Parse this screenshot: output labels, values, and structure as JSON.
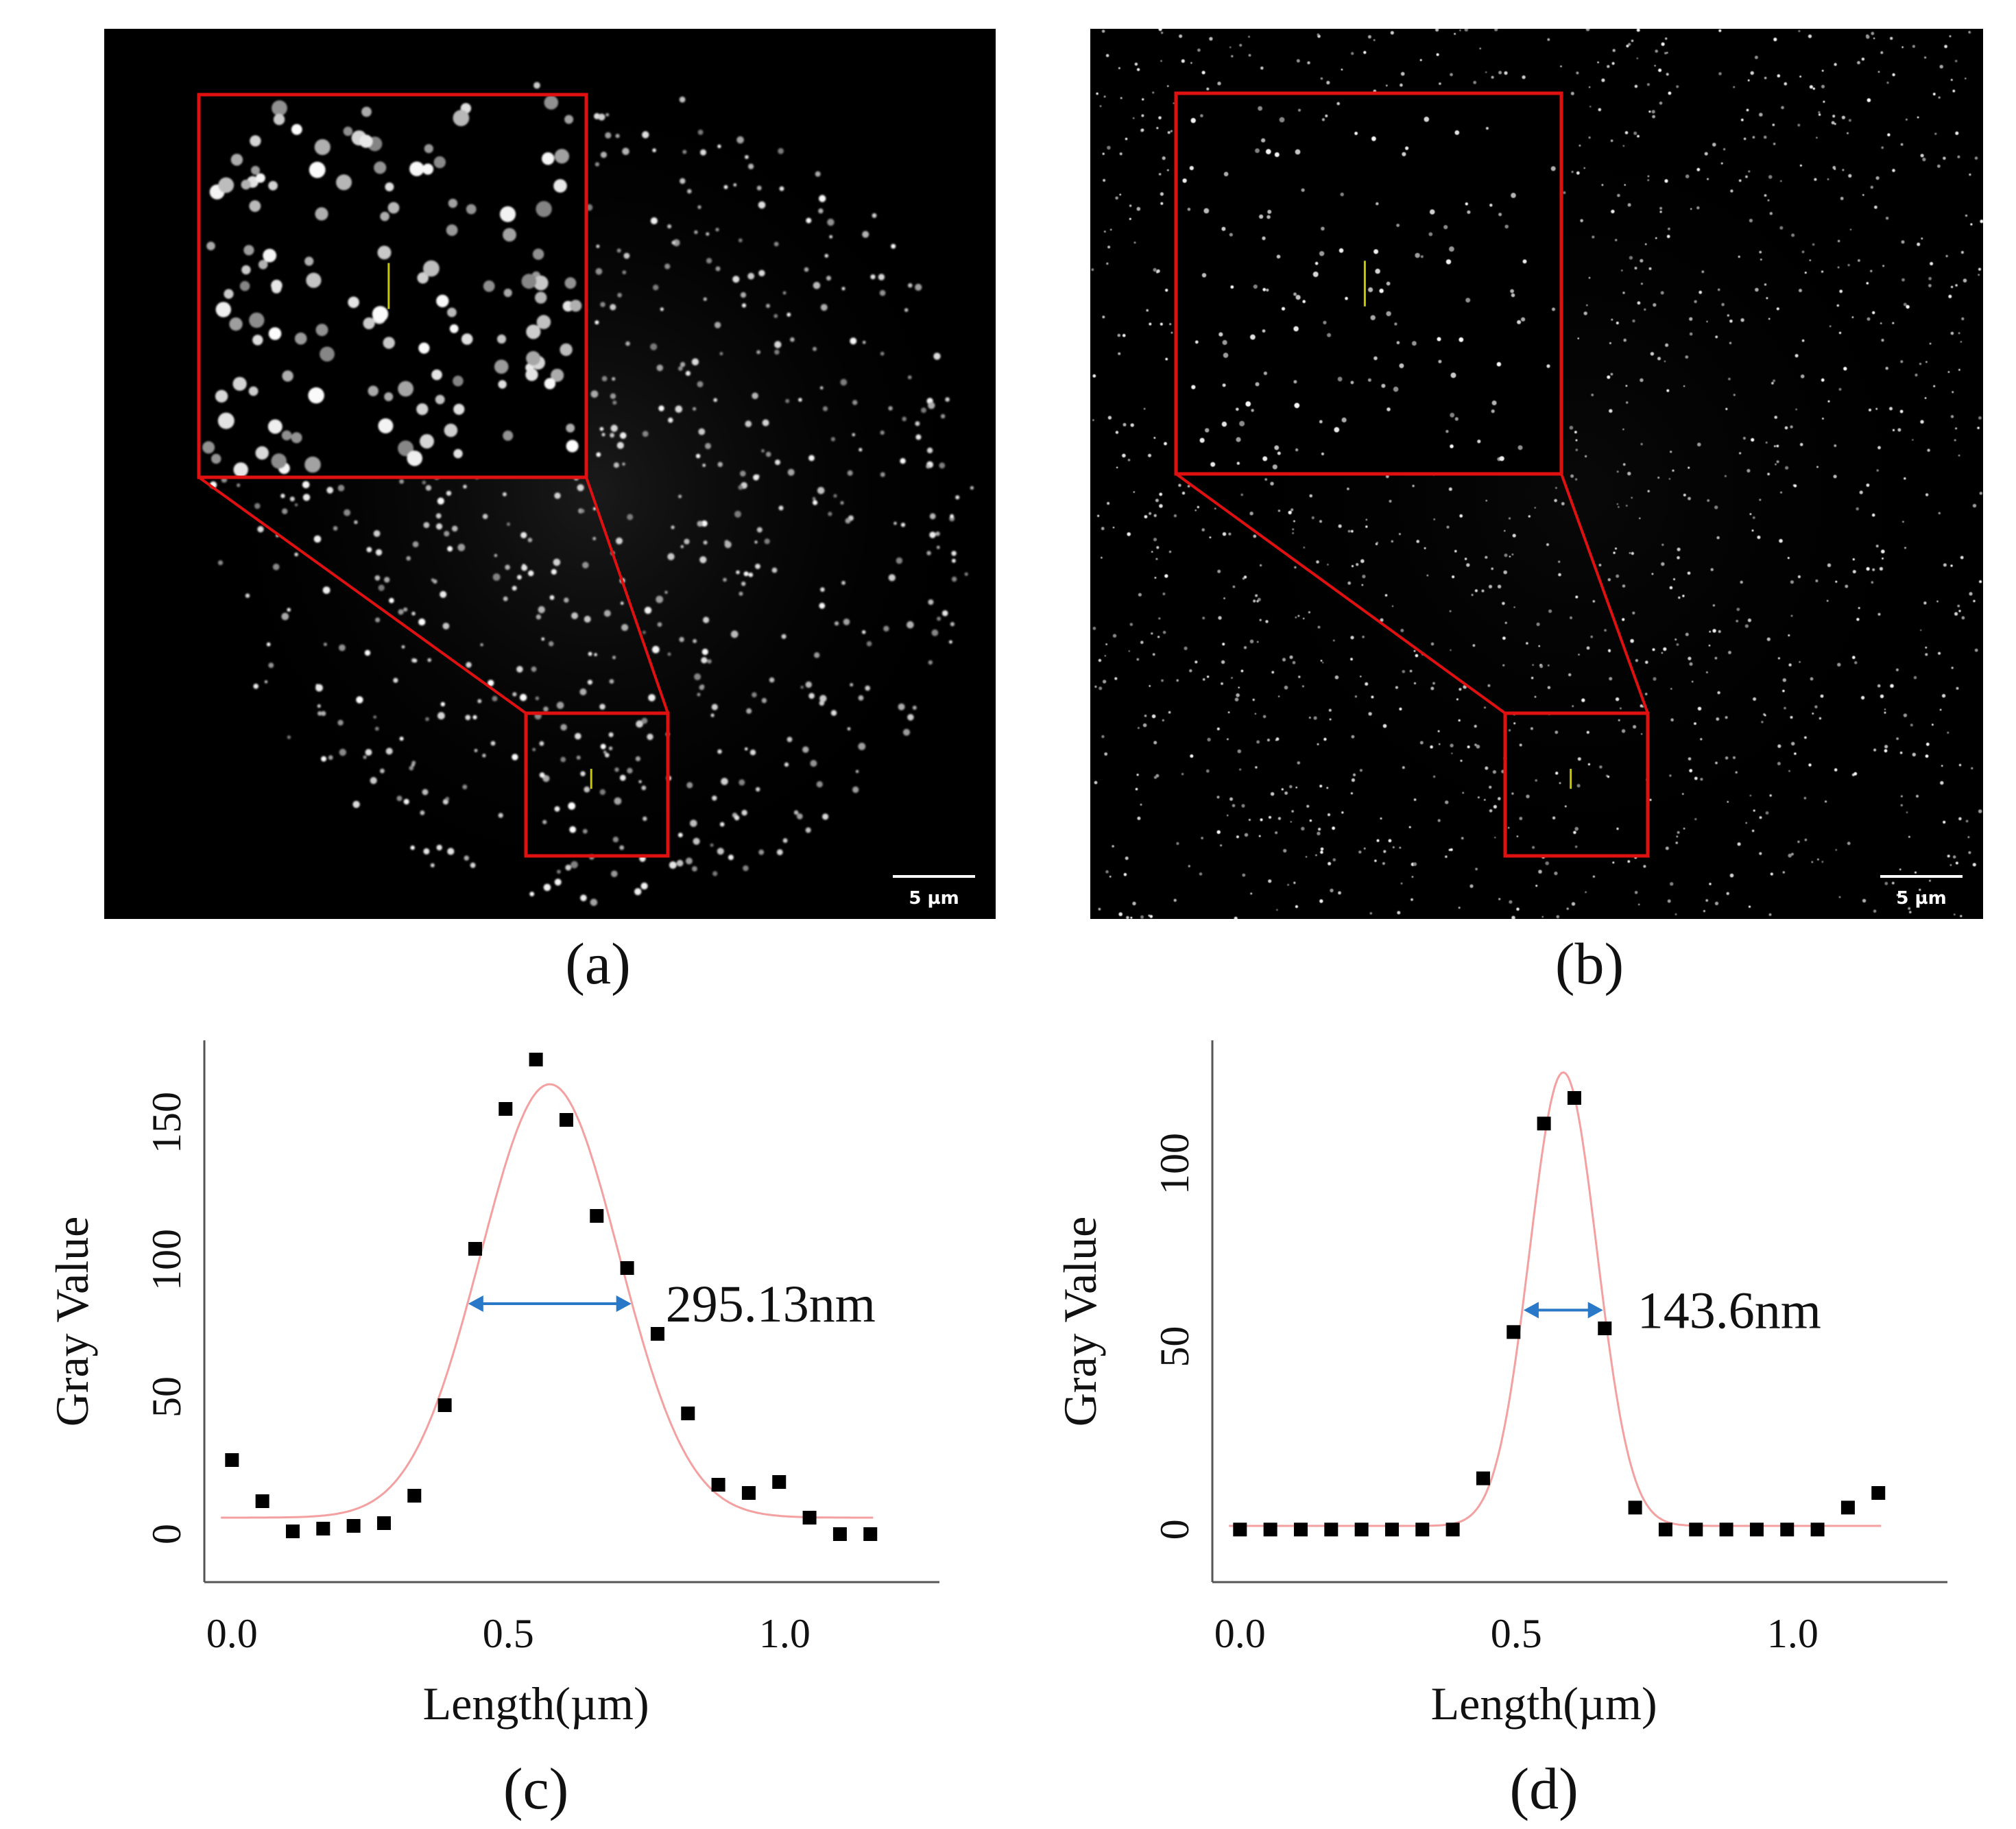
{
  "images": [
    {
      "id": "a",
      "label": "(a)",
      "scalebar": "5 µm",
      "kind": "widefield"
    },
    {
      "id": "b",
      "label": "(b)",
      "scalebar": "5 µm",
      "kind": "super-resolution"
    }
  ],
  "colors": {
    "inset_box": "#e01010",
    "profile_line": "#c8c800",
    "fit_curve": "#f4a0a0",
    "marker": "#000000",
    "fwhm_arrow": "#2a78c8"
  },
  "chart_data": [
    {
      "type": "scatter",
      "label": "(c)",
      "xlabel": "Length(µm)",
      "ylabel": "Gray Value",
      "xlim": [
        -0.05,
        1.28
      ],
      "ylim": [
        -5,
        175
      ],
      "xticks": [
        0.0,
        0.5,
        1.0
      ],
      "xtick_labels": [
        "0.0",
        "0.5",
        "1.0"
      ],
      "yticks": [
        0,
        50,
        100,
        150
      ],
      "ytick_labels": [
        "0",
        "50",
        "100",
        "150"
      ],
      "points": [
        [
          0.0,
          27
        ],
        [
          0.055,
          12
        ],
        [
          0.11,
          1
        ],
        [
          0.165,
          2
        ],
        [
          0.22,
          3
        ],
        [
          0.275,
          4
        ],
        [
          0.33,
          14
        ],
        [
          0.385,
          47
        ],
        [
          0.44,
          104
        ],
        [
          0.495,
          155
        ],
        [
          0.55,
          173
        ],
        [
          0.605,
          151
        ],
        [
          0.66,
          116
        ],
        [
          0.715,
          97
        ],
        [
          0.77,
          73
        ],
        [
          0.825,
          44
        ],
        [
          0.88,
          18
        ],
        [
          0.935,
          15
        ],
        [
          0.99,
          19
        ],
        [
          1.045,
          6
        ],
        [
          1.1,
          0
        ],
        [
          1.155,
          0
        ]
      ],
      "fit": {
        "type": "gaussian",
        "baseline": 6,
        "amplitude": 158,
        "center": 0.575,
        "fwhm": 0.29513
      },
      "annotation": {
        "text": "295.13nm",
        "y": 84
      }
    },
    {
      "type": "scatter",
      "label": "(d)",
      "xlabel": "Length(µm)",
      "ylabel": "Gray Value",
      "xlim": [
        -0.05,
        1.28
      ],
      "ylim": [
        -5,
        130
      ],
      "xticks": [
        0.0,
        0.5,
        1.0
      ],
      "xtick_labels": [
        "0.0",
        "0.5",
        "1.0"
      ],
      "yticks": [
        0,
        50,
        100
      ],
      "ytick_labels": [
        "0",
        "50",
        "100"
      ],
      "points": [
        [
          0.0,
          0
        ],
        [
          0.055,
          0
        ],
        [
          0.11,
          0
        ],
        [
          0.165,
          0
        ],
        [
          0.22,
          0
        ],
        [
          0.275,
          0
        ],
        [
          0.33,
          0
        ],
        [
          0.385,
          0
        ],
        [
          0.44,
          14
        ],
        [
          0.495,
          54
        ],
        [
          0.55,
          111
        ],
        [
          0.605,
          118
        ],
        [
          0.66,
          55
        ],
        [
          0.715,
          6
        ],
        [
          0.77,
          0
        ],
        [
          0.825,
          0
        ],
        [
          0.88,
          0
        ],
        [
          0.935,
          0
        ],
        [
          0.99,
          0
        ],
        [
          1.045,
          0
        ],
        [
          1.1,
          6
        ],
        [
          1.155,
          10
        ]
      ],
      "fit": {
        "type": "gaussian",
        "baseline": 1,
        "amplitude": 124,
        "center": 0.585,
        "fwhm": 0.1436
      },
      "annotation": {
        "text": "143.6nm",
        "y": 60
      }
    }
  ]
}
